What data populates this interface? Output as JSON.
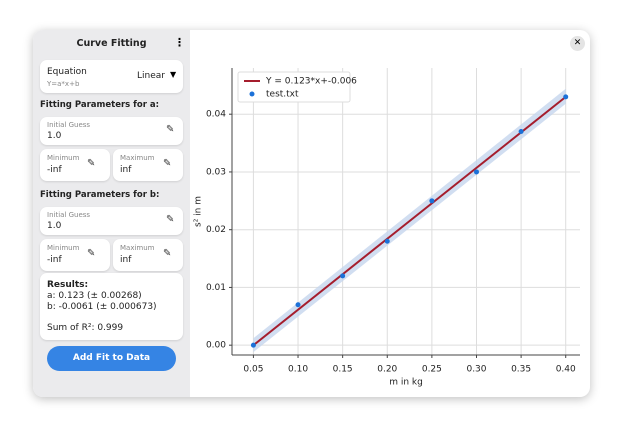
{
  "sidebar": {
    "title": "Curve Fitting",
    "equation": {
      "label": "Equation",
      "formula": "Y=a*x+b",
      "value": "Linear"
    },
    "parameters": [
      {
        "heading": "Fitting Parameters for a:",
        "initial_guess": {
          "label": "Initial Guess",
          "value": "1.0"
        },
        "minimum": {
          "label": "Minimum",
          "value": "-inf"
        },
        "maximum": {
          "label": "Maximum",
          "value": "inf"
        }
      },
      {
        "heading": "Fitting Parameters for b:",
        "initial_guess": {
          "label": "Initial Guess",
          "value": "1.0"
        },
        "minimum": {
          "label": "Minimum",
          "value": "-inf"
        },
        "maximum": {
          "label": "Maximum",
          "value": "inf"
        }
      }
    ],
    "results": {
      "heading": "Results:",
      "lines": [
        "a: 0.123 (± 0.00268)",
        "b: -0.0061 (± 0.000673)"
      ],
      "sum": "Sum of R²: 0.999"
    },
    "button": "Add Fit to Data"
  },
  "chart_data": {
    "type": "scatter",
    "x_label": "m in kg",
    "y_label": "s² in m",
    "xlim": [
      0.026,
      0.416
    ],
    "ylim": [
      -0.0017,
      0.048
    ],
    "xticks": [
      0.05,
      {
        "value": 0.1,
        "label": "0.10"
      },
      0.15,
      {
        "value": 0.2,
        "label": "0.20"
      },
      0.25,
      {
        "value": 0.3,
        "label": "0.30"
      },
      0.35,
      {
        "value": 0.4,
        "label": "0.40"
      }
    ],
    "yticks": [
      {
        "value": 0,
        "label": "0.00"
      },
      0.01,
      0.02,
      0.03,
      0.04
    ],
    "grid": true,
    "legend": "upper left",
    "confidence_band": {
      "color": "#c5d6ee",
      "x": [
        0.05,
        0.4
      ],
      "lower": [
        -0.0012,
        0.0418
      ],
      "upper": [
        0.0012,
        0.0444
      ]
    },
    "series": [
      {
        "name": "Y = 0.123*x+-0.006",
        "type": "line",
        "color": "#a51d2d",
        "x": [
          0.05,
          0.4
        ],
        "values": [
          0.0,
          0.043
        ]
      },
      {
        "name": "test.txt",
        "type": "scatter",
        "color": "#1c71d8",
        "x": [
          0.05,
          0.1,
          0.15,
          0.2,
          0.25,
          0.3,
          0.35,
          0.4
        ],
        "values": [
          0.0,
          0.007,
          0.012,
          0.018,
          0.025,
          0.03,
          0.037,
          0.043
        ]
      }
    ]
  }
}
